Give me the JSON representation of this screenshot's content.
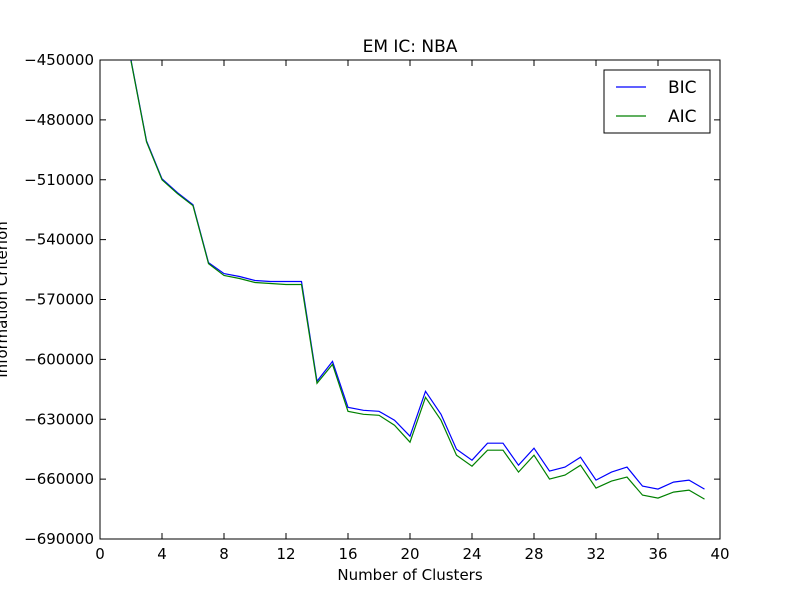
{
  "chart_data": {
    "type": "line",
    "title": "EM IC: NBA",
    "xlabel": "Number of Clusters",
    "ylabel": "Information Criterion",
    "xlim": [
      0,
      40
    ],
    "ylim": [
      -690000,
      -450000
    ],
    "x_ticks": [
      0,
      4,
      8,
      12,
      16,
      20,
      24,
      28,
      32,
      36,
      40
    ],
    "y_ticks": [
      -450000,
      -480000,
      -510000,
      -540000,
      -570000,
      -600000,
      -630000,
      -660000,
      -690000
    ],
    "x_tick_labels": [
      "0",
      "4",
      "8",
      "12",
      "16",
      "20",
      "24",
      "28",
      "32",
      "36",
      "40"
    ],
    "y_tick_labels": [
      "−450000",
      "−480000",
      "−510000",
      "−540000",
      "−570000",
      "−600000",
      "−630000",
      "−660000",
      "−690000"
    ],
    "legend_position": "top-right",
    "grid": false,
    "x": [
      2,
      3,
      4,
      5,
      6,
      7,
      8,
      9,
      10,
      11,
      12,
      13,
      14,
      15,
      16,
      17,
      18,
      19,
      20,
      21,
      22,
      23,
      24,
      25,
      26,
      27,
      28,
      29,
      30,
      31,
      32,
      33,
      34,
      35,
      36,
      37,
      38,
      39
    ],
    "series": [
      {
        "name": "BIC",
        "color": "#0000ff",
        "values": [
          -450000,
          -490500,
          -509500,
          -516500,
          -522500,
          -551500,
          -557000,
          -558500,
          -560500,
          -561000,
          -561000,
          -561000,
          -611000,
          -601000,
          -624000,
          -625500,
          -626000,
          -630500,
          -638500,
          -616000,
          -627500,
          -645000,
          -650500,
          -642000,
          -642000,
          -653000,
          -644500,
          -656000,
          -654000,
          -649000,
          -660500,
          -656500,
          -654000,
          -663500,
          -665000,
          -661500,
          -660500,
          -665000
        ]
      },
      {
        "name": "AIC",
        "color": "#008000",
        "values": [
          -450500,
          -491000,
          -510000,
          -517000,
          -523000,
          -552000,
          -558000,
          -559500,
          -561500,
          -562000,
          -562500,
          -562500,
          -612000,
          -602500,
          -626000,
          -627500,
          -628000,
          -633000,
          -641500,
          -619000,
          -630500,
          -648000,
          -653500,
          -645500,
          -645500,
          -656500,
          -648000,
          -660000,
          -658000,
          -653000,
          -664500,
          -661000,
          -659000,
          -668000,
          -669500,
          -666500,
          -665500,
          -670000
        ]
      }
    ]
  }
}
